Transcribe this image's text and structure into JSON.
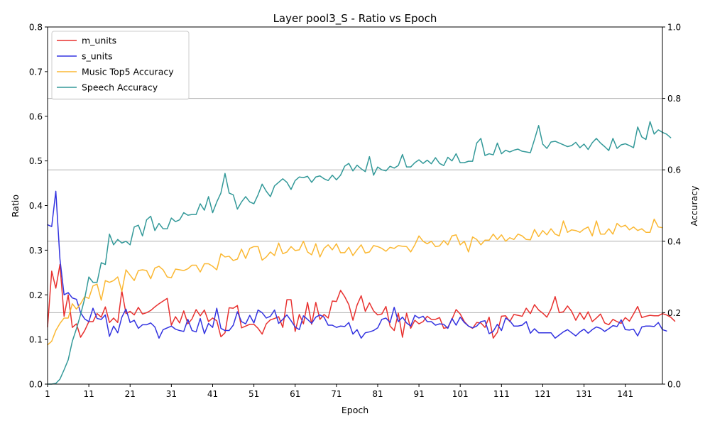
{
  "chart_data": {
    "type": "line",
    "title": "Layer pool3_S - Ratio vs Epoch",
    "xlabel": "Epoch",
    "ylabel": "Ratio",
    "ylabel_right": "Accuracy",
    "xlim": [
      1,
      150
    ],
    "ylim": [
      0,
      0.8
    ],
    "ylim_right": [
      0,
      1.0
    ],
    "xticks": [
      1,
      11,
      21,
      31,
      41,
      51,
      61,
      71,
      81,
      91,
      101,
      111,
      121,
      131,
      141
    ],
    "yticks": [
      0.0,
      0.1,
      0.2,
      0.3,
      0.4,
      0.5,
      0.6,
      0.7,
      0.8
    ],
    "yticks_right": [
      0.0,
      0.2,
      0.4,
      0.6,
      0.8,
      1.0
    ],
    "grid": "horizontal lines at right-axis ticks",
    "legend_position": "top-left",
    "series": [
      {
        "name": "m_units",
        "axis": "left",
        "color": "#e8312f",
        "values": [
          0.128,
          0.253,
          0.215,
          0.268,
          0.152,
          0.2,
          0.127,
          0.135,
          0.105,
          0.12,
          0.14,
          0.14,
          0.158,
          0.15,
          0.173,
          0.138,
          0.148,
          0.138,
          0.209,
          0.158,
          0.163,
          0.155,
          0.172,
          0.157,
          0.16,
          0.165,
          0.173,
          0.18,
          0.186,
          0.192,
          0.132,
          0.151,
          0.137,
          0.164,
          0.135,
          0.146,
          0.167,
          0.153,
          0.166,
          0.14,
          0.148,
          0.142,
          0.106,
          0.115,
          0.171,
          0.17,
          0.176,
          0.126,
          0.13,
          0.134,
          0.134,
          0.125,
          0.112,
          0.135,
          0.144,
          0.147,
          0.151,
          0.127,
          0.189,
          0.189,
          0.118,
          0.156,
          0.135,
          0.183,
          0.134,
          0.183,
          0.145,
          0.156,
          0.148,
          0.186,
          0.185,
          0.21,
          0.196,
          0.178,
          0.143,
          0.177,
          0.198,
          0.163,
          0.182,
          0.164,
          0.155,
          0.157,
          0.174,
          0.13,
          0.12,
          0.159,
          0.105,
          0.159,
          0.125,
          0.143,
          0.135,
          0.14,
          0.152,
          0.145,
          0.145,
          0.149,
          0.125,
          0.127,
          0.145,
          0.167,
          0.157,
          0.14,
          0.13,
          0.125,
          0.138,
          0.137,
          0.127,
          0.15,
          0.103,
          0.116,
          0.152,
          0.153,
          0.14,
          0.156,
          0.154,
          0.152,
          0.17,
          0.158,
          0.178,
          0.166,
          0.159,
          0.15,
          0.168,
          0.196,
          0.16,
          0.162,
          0.175,
          0.163,
          0.143,
          0.16,
          0.145,
          0.162,
          0.14,
          0.148,
          0.157,
          0.137,
          0.133,
          0.145,
          0.14,
          0.136,
          0.149,
          0.141,
          0.157,
          0.174,
          0.149,
          0.152,
          0.154,
          0.153,
          0.153,
          0.158,
          0.155,
          0.15,
          0.141
        ]
      },
      {
        "name": "s_units",
        "axis": "left",
        "color": "#3333e0",
        "values": [
          0.357,
          0.353,
          0.432,
          0.28,
          0.2,
          0.205,
          0.193,
          0.19,
          0.16,
          0.146,
          0.14,
          0.17,
          0.147,
          0.145,
          0.155,
          0.107,
          0.13,
          0.115,
          0.15,
          0.168,
          0.138,
          0.143,
          0.125,
          0.133,
          0.133,
          0.137,
          0.128,
          0.103,
          0.122,
          0.126,
          0.13,
          0.123,
          0.12,
          0.118,
          0.145,
          0.12,
          0.117,
          0.147,
          0.113,
          0.136,
          0.127,
          0.17,
          0.125,
          0.12,
          0.12,
          0.132,
          0.162,
          0.14,
          0.135,
          0.154,
          0.137,
          0.166,
          0.16,
          0.148,
          0.152,
          0.166,
          0.136,
          0.145,
          0.155,
          0.142,
          0.128,
          0.122,
          0.153,
          0.145,
          0.136,
          0.15,
          0.155,
          0.15,
          0.132,
          0.132,
          0.127,
          0.13,
          0.129,
          0.138,
          0.112,
          0.122,
          0.103,
          0.115,
          0.117,
          0.12,
          0.126,
          0.145,
          0.148,
          0.138,
          0.172,
          0.14,
          0.15,
          0.137,
          0.13,
          0.154,
          0.148,
          0.152,
          0.14,
          0.14,
          0.132,
          0.135,
          0.134,
          0.125,
          0.147,
          0.132,
          0.15,
          0.138,
          0.13,
          0.126,
          0.13,
          0.14,
          0.142,
          0.113,
          0.118,
          0.134,
          0.12,
          0.148,
          0.142,
          0.13,
          0.13,
          0.132,
          0.14,
          0.114,
          0.124,
          0.115,
          0.115,
          0.115,
          0.115,
          0.103,
          0.11,
          0.117,
          0.122,
          0.115,
          0.108,
          0.117,
          0.123,
          0.114,
          0.122,
          0.128,
          0.125,
          0.118,
          0.124,
          0.131,
          0.129,
          0.144,
          0.122,
          0.121,
          0.123,
          0.108,
          0.128,
          0.13,
          0.13,
          0.129,
          0.138,
          0.122,
          0.119
        ]
      },
      {
        "name": "Music Top5 Accuracy",
        "axis": "right",
        "color": "#fbb833",
        "values": [
          0.11,
          0.12,
          0.15,
          0.17,
          0.185,
          0.185,
          0.225,
          0.21,
          0.225,
          0.245,
          0.24,
          0.275,
          0.28,
          0.235,
          0.29,
          0.285,
          0.29,
          0.3,
          0.26,
          0.32,
          0.305,
          0.29,
          0.318,
          0.32,
          0.318,
          0.295,
          0.325,
          0.33,
          0.32,
          0.3,
          0.298,
          0.322,
          0.32,
          0.318,
          0.323,
          0.333,
          0.333,
          0.314,
          0.337,
          0.337,
          0.33,
          0.32,
          0.365,
          0.356,
          0.358,
          0.346,
          0.35,
          0.378,
          0.352,
          0.38,
          0.385,
          0.385,
          0.347,
          0.356,
          0.37,
          0.36,
          0.395,
          0.365,
          0.37,
          0.385,
          0.374,
          0.376,
          0.4,
          0.37,
          0.362,
          0.393,
          0.356,
          0.38,
          0.39,
          0.376,
          0.393,
          0.368,
          0.368,
          0.383,
          0.36,
          0.376,
          0.39,
          0.367,
          0.37,
          0.388,
          0.385,
          0.38,
          0.372,
          0.383,
          0.38,
          0.388,
          0.386,
          0.385,
          0.37,
          0.39,
          0.415,
          0.4,
          0.393,
          0.4,
          0.385,
          0.387,
          0.402,
          0.39,
          0.415,
          0.418,
          0.39,
          0.4,
          0.37,
          0.412,
          0.405,
          0.39,
          0.403,
          0.403,
          0.42,
          0.405,
          0.418,
          0.4,
          0.41,
          0.405,
          0.42,
          0.415,
          0.405,
          0.404,
          0.433,
          0.413,
          0.43,
          0.418,
          0.435,
          0.42,
          0.415,
          0.457,
          0.425,
          0.432,
          0.43,
          0.425,
          0.434,
          0.44,
          0.415,
          0.457,
          0.42,
          0.42,
          0.435,
          0.42,
          0.45,
          0.44,
          0.445,
          0.432,
          0.44,
          0.43,
          0.435,
          0.425,
          0.425,
          0.462,
          0.44,
          0.438
        ]
      },
      {
        "name": "Speech Accuracy",
        "axis": "right",
        "color": "#339999",
        "values": [
          0.0,
          0.0,
          0.002,
          0.014,
          0.04,
          0.068,
          0.12,
          0.155,
          0.195,
          0.24,
          0.3,
          0.285,
          0.285,
          0.34,
          0.335,
          0.42,
          0.39,
          0.405,
          0.395,
          0.4,
          0.39,
          0.44,
          0.445,
          0.415,
          0.46,
          0.47,
          0.43,
          0.45,
          0.435,
          0.435,
          0.465,
          0.455,
          0.46,
          0.48,
          0.473,
          0.475,
          0.475,
          0.505,
          0.487,
          0.525,
          0.48,
          0.51,
          0.535,
          0.59,
          0.535,
          0.53,
          0.49,
          0.51,
          0.525,
          0.51,
          0.505,
          0.53,
          0.56,
          0.54,
          0.525,
          0.555,
          0.565,
          0.575,
          0.565,
          0.545,
          0.57,
          0.58,
          0.578,
          0.582,
          0.565,
          0.58,
          0.583,
          0.575,
          0.57,
          0.585,
          0.572,
          0.585,
          0.61,
          0.618,
          0.597,
          0.613,
          0.603,
          0.595,
          0.637,
          0.585,
          0.608,
          0.6,
          0.597,
          0.61,
          0.605,
          0.612,
          0.643,
          0.608,
          0.608,
          0.62,
          0.628,
          0.618,
          0.627,
          0.617,
          0.634,
          0.618,
          0.612,
          0.635,
          0.625,
          0.645,
          0.62,
          0.62,
          0.624,
          0.624,
          0.675,
          0.688,
          0.64,
          0.645,
          0.642,
          0.675,
          0.645,
          0.655,
          0.65,
          0.655,
          0.658,
          0.652,
          0.65,
          0.648,
          0.685,
          0.724,
          0.672,
          0.66,
          0.678,
          0.68,
          0.675,
          0.67,
          0.665,
          0.668,
          0.677,
          0.662,
          0.672,
          0.657,
          0.676,
          0.688,
          0.675,
          0.665,
          0.654,
          0.688,
          0.66,
          0.67,
          0.673,
          0.668,
          0.662,
          0.72,
          0.692,
          0.685,
          0.735,
          0.7,
          0.712,
          0.705,
          0.7,
          0.69
        ]
      }
    ]
  }
}
